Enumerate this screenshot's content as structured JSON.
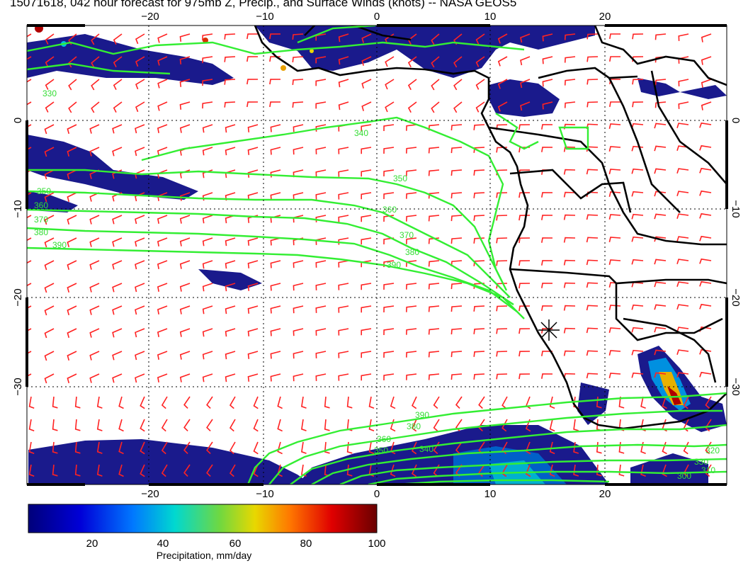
{
  "title": "15071618, 042 hour forecast for 975mb Z, Precip., and Surface Winds (knots) -- NASA GEOS5",
  "map": {
    "lon_ticks": [
      "−20",
      "−10",
      "0",
      "10",
      "20"
    ],
    "lat_ticks": [
      "0",
      "−10",
      "−20",
      "−30"
    ],
    "contour_labels": [
      "330",
      "340",
      "350",
      "350",
      "360",
      "360",
      "370",
      "370",
      "380",
      "380",
      "390",
      "390",
      "390",
      "380",
      "360",
      "350",
      "340",
      "330",
      "320",
      "310",
      "300"
    ],
    "colors": {
      "contour": "#33ee33",
      "coast": "#000000",
      "wind_barb": "#ff2222",
      "precip_low": "#1a1a8c",
      "precip_high": "#7a0000"
    },
    "marker": "sun-star-icon"
  },
  "colorbar": {
    "ticks": [
      "20",
      "40",
      "60",
      "80",
      "100"
    ],
    "label": "Precipitation, mm/day",
    "range": [
      0,
      100
    ]
  }
}
